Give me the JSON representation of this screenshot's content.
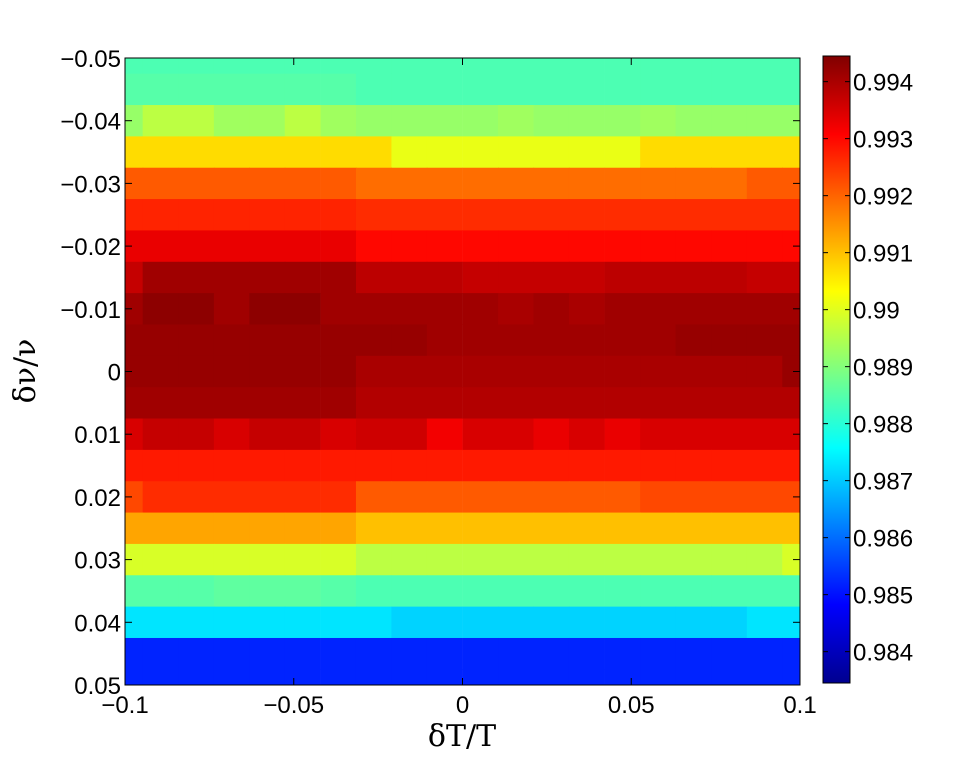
{
  "chart_data": {
    "type": "heatmap",
    "title": "",
    "xlabel": "δT/T",
    "ylabel": "δν/ν",
    "xlim": [
      -0.1,
      0.1
    ],
    "ylim": [
      -0.05,
      0.05
    ],
    "y_axis_direction": "reversed",
    "x_ticks": [
      "−0.1",
      "−0.05",
      "0",
      "0.05",
      "0.1"
    ],
    "x_tick_values": [
      -0.1,
      -0.05,
      0,
      0.05,
      0.1
    ],
    "y_ticks": [
      "−0.05",
      "−0.04",
      "−0.03",
      "−0.02",
      "−0.01",
      "0",
      "0.01",
      "0.02",
      "0.03",
      "0.04",
      "0.05"
    ],
    "y_tick_values": [
      -0.05,
      -0.04,
      -0.03,
      -0.02,
      -0.01,
      0,
      0.01,
      0.02,
      0.03,
      0.04,
      0.05
    ],
    "colorbar": {
      "colormap": "jet",
      "range": [
        0.98345,
        0.99445
      ],
      "ticks": [
        "0.984",
        "0.985",
        "0.986",
        "0.987",
        "0.988",
        "0.989",
        "0.99",
        "0.991",
        "0.992",
        "0.993",
        "0.994"
      ],
      "tick_values": [
        0.984,
        0.985,
        0.986,
        0.987,
        0.988,
        0.989,
        0.99,
        0.991,
        0.992,
        0.993,
        0.994
      ]
    },
    "grid": false,
    "x_centers": [
      -0.1,
      -0.0895,
      -0.0789,
      -0.0684,
      -0.0579,
      -0.0474,
      -0.0368,
      -0.0263,
      -0.0158,
      -0.0053,
      0.0053,
      0.0158,
      0.0263,
      0.0368,
      0.0474,
      0.0579,
      0.0684,
      0.0789,
      0.0895,
      0.1
    ],
    "y_centers": [
      -0.05,
      -0.045,
      -0.04,
      -0.035,
      -0.03,
      -0.025,
      -0.02,
      -0.015,
      -0.01,
      -0.005,
      0,
      0.005,
      0.01,
      0.015,
      0.02,
      0.025,
      0.03,
      0.035,
      0.04,
      0.045,
      0.05
    ],
    "values": [
      [
        0.9884,
        0.9884,
        0.9884,
        0.9884,
        0.9884,
        0.9884,
        0.9884,
        0.9884,
        0.9884,
        0.9884,
        0.9884,
        0.9884,
        0.9884,
        0.9884,
        0.9884,
        0.9884,
        0.9884,
        0.9884,
        0.9884,
        0.9884
      ],
      [
        0.9885,
        0.9885,
        0.9885,
        0.9885,
        0.9885,
        0.9885,
        0.9885,
        0.9884,
        0.9884,
        0.9884,
        0.9884,
        0.9884,
        0.9884,
        0.9884,
        0.9884,
        0.9884,
        0.9884,
        0.9884,
        0.9884,
        0.9884
      ],
      [
        0.9892,
        0.9896,
        0.9896,
        0.9893,
        0.9893,
        0.9896,
        0.9893,
        0.9892,
        0.9892,
        0.9892,
        0.9892,
        0.9893,
        0.9892,
        0.9892,
        0.9892,
        0.9893,
        0.9892,
        0.9892,
        0.9892,
        0.9892
      ],
      [
        0.9907,
        0.9907,
        0.9907,
        0.9907,
        0.9907,
        0.9907,
        0.9907,
        0.9907,
        0.9901,
        0.9901,
        0.9901,
        0.9901,
        0.9901,
        0.9901,
        0.9901,
        0.9907,
        0.9907,
        0.9907,
        0.9907,
        0.9907
      ],
      [
        0.9921,
        0.9921,
        0.9921,
        0.9921,
        0.9921,
        0.9921,
        0.9921,
        0.9919,
        0.9919,
        0.9919,
        0.9919,
        0.9919,
        0.9919,
        0.9919,
        0.9919,
        0.9919,
        0.9919,
        0.9919,
        0.9921,
        0.9921
      ],
      [
        0.9927,
        0.9927,
        0.9927,
        0.9927,
        0.9927,
        0.9927,
        0.9927,
        0.9926,
        0.9926,
        0.9926,
        0.9926,
        0.9926,
        0.9926,
        0.9926,
        0.9926,
        0.9926,
        0.9926,
        0.9926,
        0.9926,
        0.9926
      ],
      [
        0.9933,
        0.9933,
        0.9933,
        0.9933,
        0.9933,
        0.9933,
        0.9933,
        0.993,
        0.993,
        0.993,
        0.993,
        0.993,
        0.993,
        0.993,
        0.993,
        0.993,
        0.993,
        0.993,
        0.993,
        0.993
      ],
      [
        0.9937,
        0.9941,
        0.9941,
        0.9941,
        0.9941,
        0.9941,
        0.9941,
        0.9938,
        0.9938,
        0.9938,
        0.9937,
        0.9937,
        0.9937,
        0.9937,
        0.9938,
        0.9938,
        0.9938,
        0.9938,
        0.9937,
        0.9937
      ],
      [
        0.9941,
        0.9943,
        0.9943,
        0.9941,
        0.9943,
        0.9943,
        0.9941,
        0.9941,
        0.9941,
        0.9941,
        0.9941,
        0.994,
        0.9941,
        0.994,
        0.9941,
        0.9941,
        0.9941,
        0.9941,
        0.9941,
        0.9941
      ],
      [
        0.9942,
        0.9942,
        0.9942,
        0.9942,
        0.9942,
        0.9942,
        0.9942,
        0.9942,
        0.9942,
        0.9941,
        0.9941,
        0.9941,
        0.9941,
        0.9941,
        0.9941,
        0.9941,
        0.9942,
        0.9942,
        0.9942,
        0.9942
      ],
      [
        0.9942,
        0.9942,
        0.9942,
        0.9942,
        0.9942,
        0.9942,
        0.9942,
        0.994,
        0.994,
        0.994,
        0.994,
        0.994,
        0.994,
        0.994,
        0.994,
        0.994,
        0.994,
        0.994,
        0.994,
        0.9942
      ],
      [
        0.9941,
        0.9941,
        0.9941,
        0.9941,
        0.9941,
        0.9941,
        0.9941,
        0.9939,
        0.9939,
        0.9939,
        0.9939,
        0.9939,
        0.9939,
        0.9939,
        0.9939,
        0.9939,
        0.9939,
        0.9939,
        0.9939,
        0.9939
      ],
      [
        0.9935,
        0.9937,
        0.9937,
        0.9935,
        0.9937,
        0.9937,
        0.9935,
        0.9936,
        0.9936,
        0.9932,
        0.9935,
        0.9935,
        0.9933,
        0.9935,
        0.9933,
        0.9935,
        0.9935,
        0.9935,
        0.9935,
        0.9935
      ],
      [
        0.9928,
        0.9928,
        0.9928,
        0.9928,
        0.9928,
        0.9928,
        0.9928,
        0.9928,
        0.9928,
        0.9928,
        0.9928,
        0.9928,
        0.9928,
        0.9928,
        0.9928,
        0.9928,
        0.9928,
        0.9928,
        0.9928,
        0.9928
      ],
      [
        0.9923,
        0.9926,
        0.9926,
        0.9926,
        0.9926,
        0.9926,
        0.9926,
        0.9921,
        0.9921,
        0.9921,
        0.9921,
        0.9921,
        0.9921,
        0.9921,
        0.9921,
        0.9923,
        0.9923,
        0.9923,
        0.9923,
        0.9923
      ],
      [
        0.9913,
        0.9913,
        0.9913,
        0.9913,
        0.9913,
        0.9913,
        0.9913,
        0.991,
        0.991,
        0.991,
        0.991,
        0.991,
        0.991,
        0.991,
        0.991,
        0.991,
        0.991,
        0.991,
        0.991,
        0.991
      ],
      [
        0.9899,
        0.9899,
        0.9899,
        0.9899,
        0.9899,
        0.9899,
        0.9899,
        0.9896,
        0.9896,
        0.9896,
        0.9896,
        0.9896,
        0.9896,
        0.9896,
        0.9896,
        0.9896,
        0.9896,
        0.9896,
        0.9896,
        0.9899
      ],
      [
        0.9885,
        0.9885,
        0.9885,
        0.9886,
        0.9886,
        0.9886,
        0.9885,
        0.9884,
        0.9884,
        0.9884,
        0.9884,
        0.9884,
        0.9884,
        0.9884,
        0.9884,
        0.9884,
        0.9884,
        0.9884,
        0.9884,
        0.9884
      ],
      [
        0.9873,
        0.9873,
        0.9873,
        0.9873,
        0.9873,
        0.9873,
        0.9873,
        0.9873,
        0.9871,
        0.9871,
        0.9871,
        0.9871,
        0.9871,
        0.9871,
        0.9871,
        0.9871,
        0.9871,
        0.9871,
        0.9873,
        0.9873
      ],
      [
        0.9852,
        0.9852,
        0.9852,
        0.9852,
        0.9852,
        0.9852,
        0.9852,
        0.9852,
        0.9852,
        0.9852,
        0.9852,
        0.9852,
        0.9852,
        0.9852,
        0.9852,
        0.9852,
        0.9852,
        0.9852,
        0.9852,
        0.9852
      ],
      [
        0.9852,
        0.9852,
        0.9852,
        0.9852,
        0.9852,
        0.9852,
        0.9852,
        0.9852,
        0.9852,
        0.9852,
        0.9852,
        0.9852,
        0.9852,
        0.9852,
        0.9852,
        0.9852,
        0.9852,
        0.9852,
        0.9852,
        0.9852
      ]
    ]
  }
}
